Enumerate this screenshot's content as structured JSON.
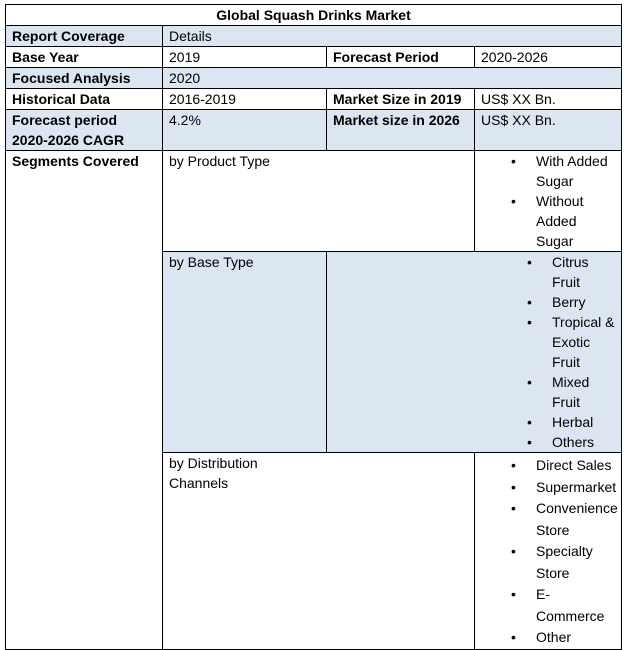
{
  "title": "Global Squash Drinks Market",
  "rows": {
    "coverage": {
      "label": "Report Coverage",
      "value": "Details"
    },
    "base_year": {
      "label": "Base Year",
      "value": "2019",
      "label2": "Forecast Period",
      "value2": "2020-2026"
    },
    "focused": {
      "label": "Focused Analysis",
      "value": "2020"
    },
    "historical": {
      "label": "Historical Data",
      "value": "2016-2019",
      "label2": "Market Size in 2019",
      "value2": "US$ XX Bn."
    },
    "cagr": {
      "label": "Forecast period 2020-2026 CAGR",
      "value": "4.2%",
      "label2": "Market size in 2026",
      "value2": "US$ XX Bn."
    }
  },
  "segments": {
    "label": "Segments Covered",
    "groups": [
      {
        "name": "by Product Type",
        "items": [
          "With Added Sugar",
          "Without Added Sugar"
        ]
      },
      {
        "name": "by Base Type",
        "items": [
          "Citrus Fruit",
          "Berry",
          "Tropical & Exotic Fruit",
          "Mixed Fruit",
          "Herbal",
          "Others"
        ]
      },
      {
        "name": "by Distribution Channels",
        "items": [
          "Direct Sales",
          "Supermarket",
          "Convenience Store",
          "Specialty Store",
          "E-Commerce",
          "Other"
        ]
      }
    ]
  },
  "bullet": "•"
}
